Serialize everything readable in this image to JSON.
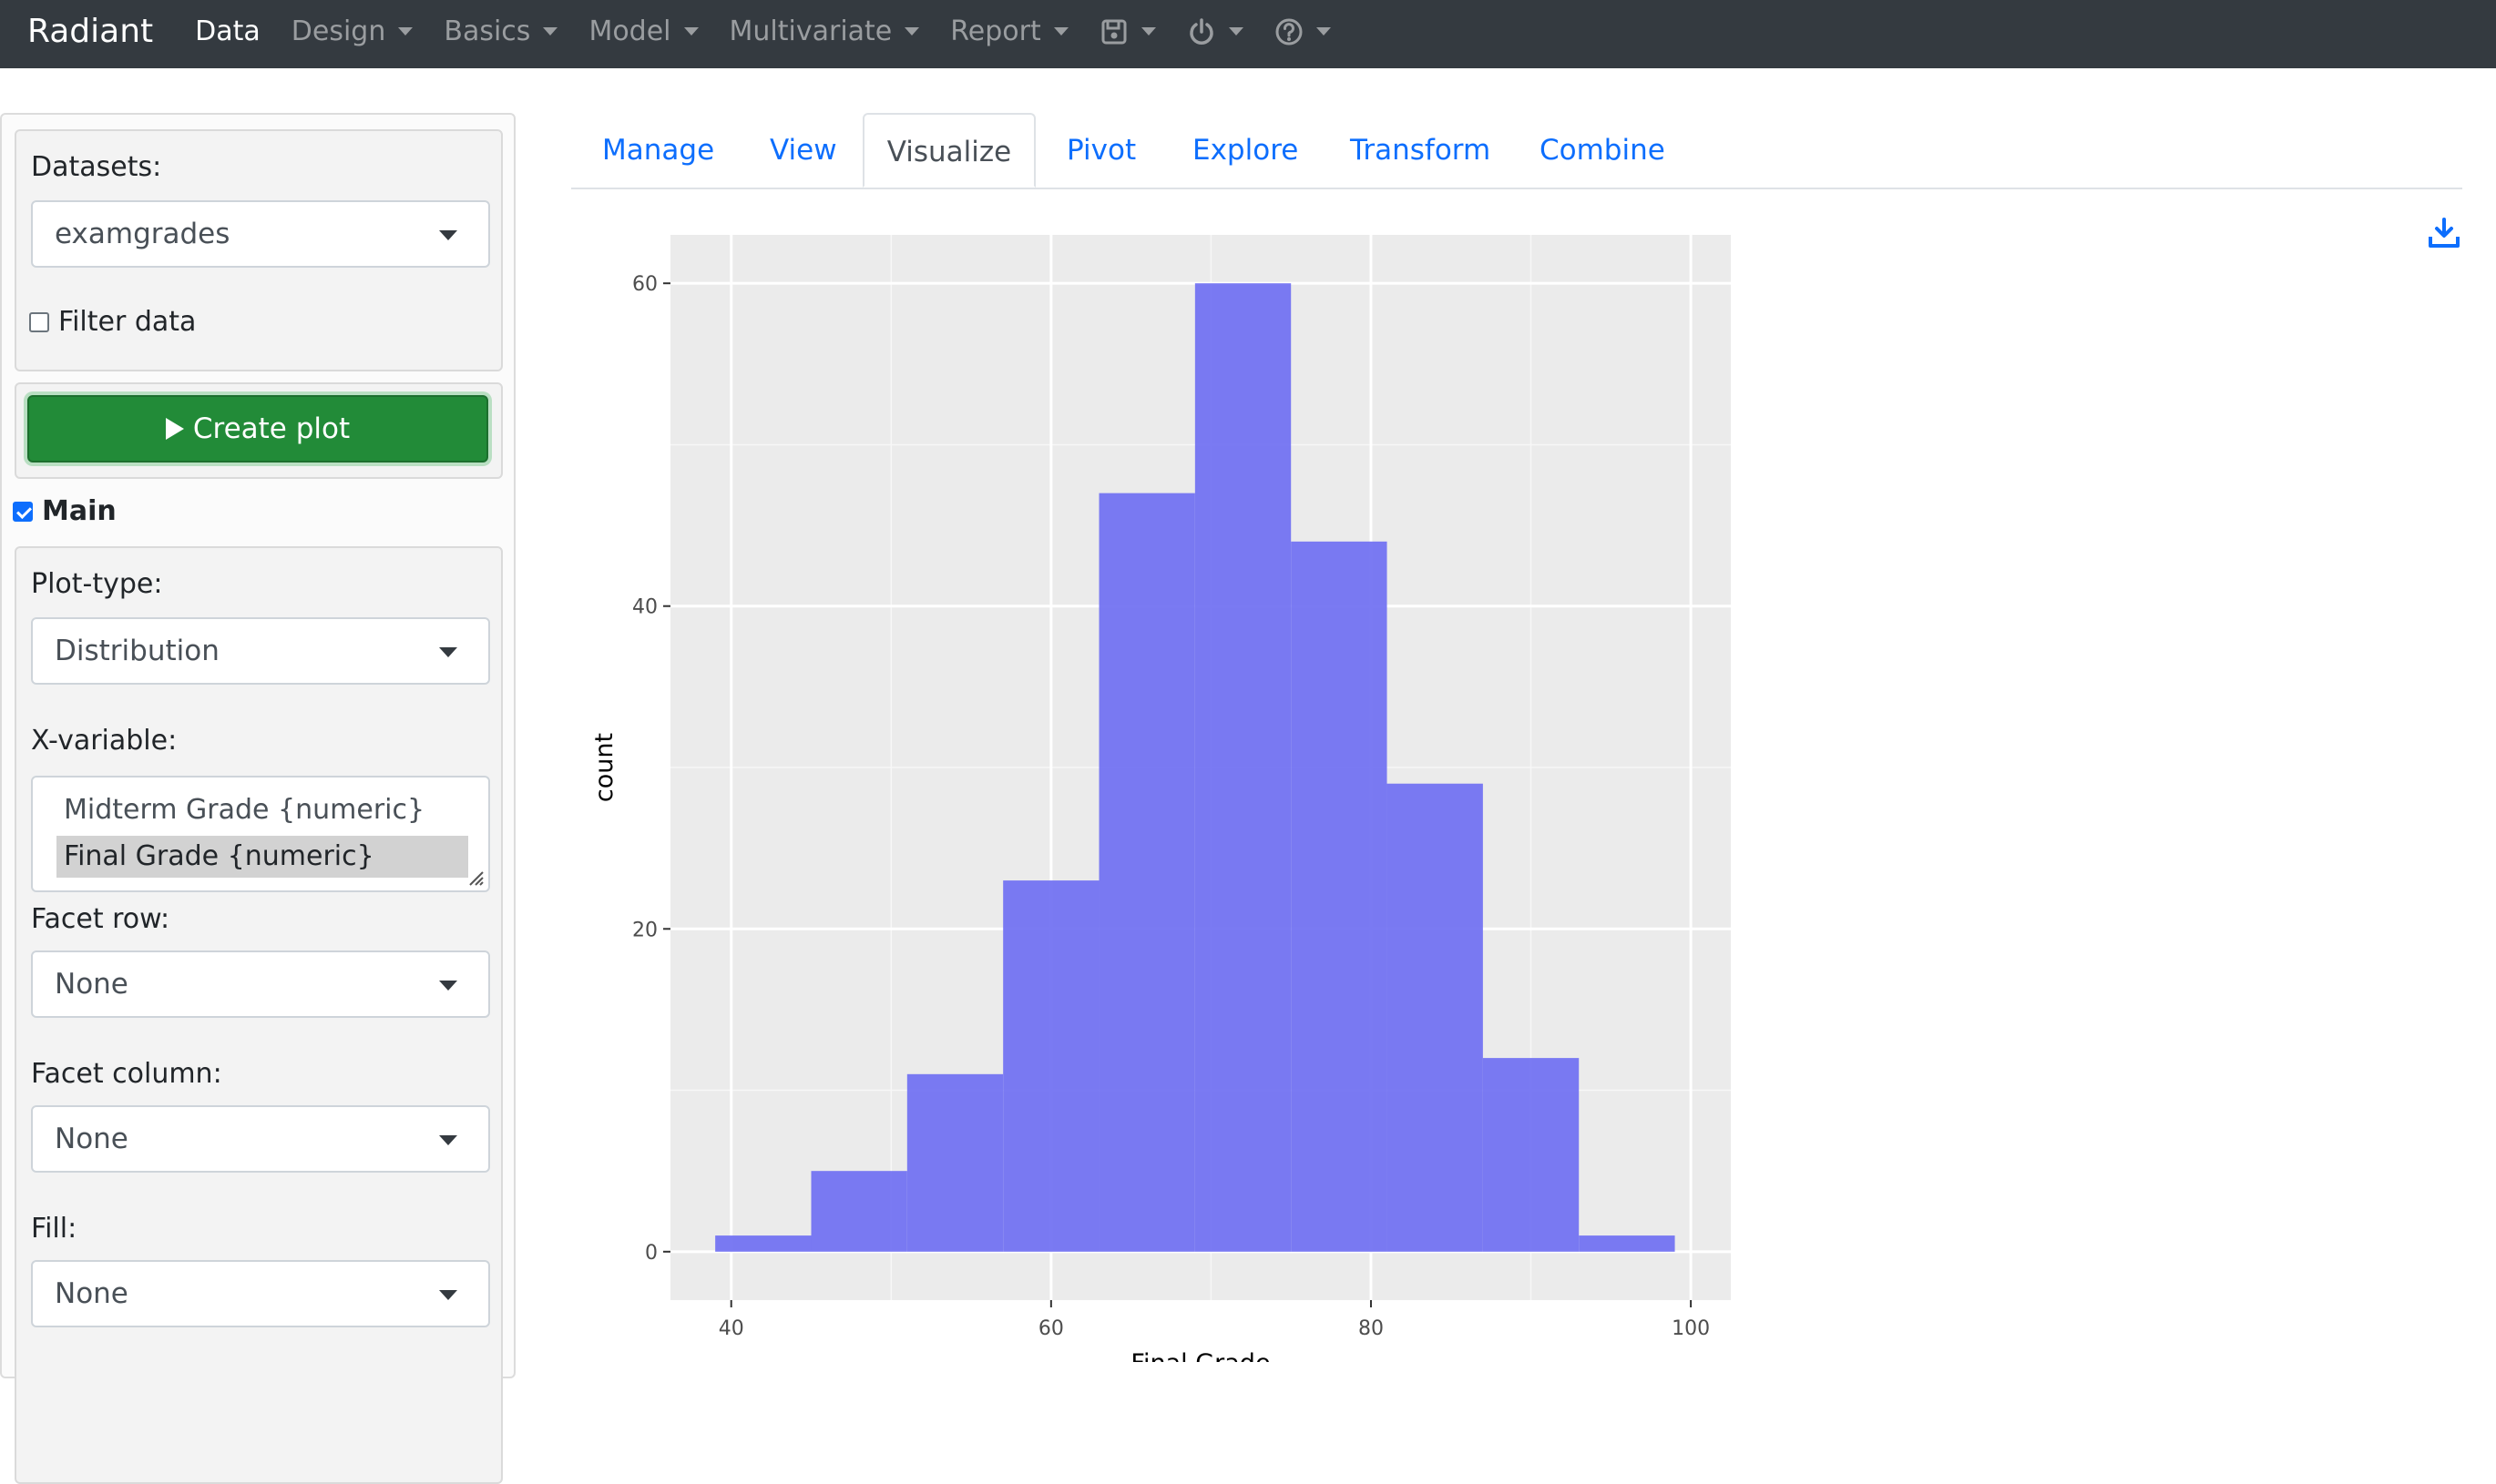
{
  "navbar": {
    "brand": "Radiant",
    "items": [
      {
        "label": "Data",
        "active": true
      },
      {
        "label": "Design"
      },
      {
        "label": "Basics"
      },
      {
        "label": "Model"
      },
      {
        "label": "Multivariate"
      },
      {
        "label": "Report"
      }
    ],
    "icons": [
      "save-icon",
      "power-icon",
      "help-icon"
    ]
  },
  "sidebar": {
    "datasets_label": "Datasets:",
    "dataset_value": "examgrades",
    "filter_label": "Filter data",
    "create_plot_label": "Create plot",
    "main_label": "Main",
    "plot_type_label": "Plot-type:",
    "plot_type_value": "Distribution",
    "x_variable_label": "X-variable:",
    "x_variable_options": [
      "Midterm Grade {numeric}",
      "Final Grade {numeric}"
    ],
    "x_variable_selected": "Final Grade {numeric}",
    "facet_row_label": "Facet row:",
    "facet_row_value": "None",
    "facet_column_label": "Facet column:",
    "facet_column_value": "None",
    "fill_label": "Fill:",
    "fill_value": "None"
  },
  "tabs": [
    "Manage",
    "View",
    "Visualize",
    "Pivot",
    "Explore",
    "Transform",
    "Combine"
  ],
  "active_tab": "Visualize",
  "colors": {
    "bar": "#7373f2",
    "panel": "#ebebeb",
    "accent": "#0d6efd",
    "button": "#228b38"
  },
  "chart_data": {
    "type": "bar",
    "title": "",
    "xlabel": "Final Grade",
    "ylabel": "count",
    "bins": [
      {
        "x0": 39,
        "x1": 45,
        "count": 1
      },
      {
        "x0": 45,
        "x1": 51,
        "count": 5
      },
      {
        "x0": 51,
        "x1": 57,
        "count": 11
      },
      {
        "x0": 57,
        "x1": 63,
        "count": 23
      },
      {
        "x0": 63,
        "x1": 69,
        "count": 47
      },
      {
        "x0": 69,
        "x1": 75,
        "count": 60
      },
      {
        "x0": 75,
        "x1": 81,
        "count": 44
      },
      {
        "x0": 81,
        "x1": 87,
        "count": 29
      },
      {
        "x0": 87,
        "x1": 93,
        "count": 12
      },
      {
        "x0": 93,
        "x1": 99,
        "count": 1
      }
    ],
    "xlim": [
      36.2,
      102.5
    ],
    "ylim": [
      -3,
      63
    ],
    "xticks": [
      40,
      60,
      80,
      100
    ],
    "yticks": [
      0,
      20,
      40,
      60
    ],
    "grid": true
  }
}
